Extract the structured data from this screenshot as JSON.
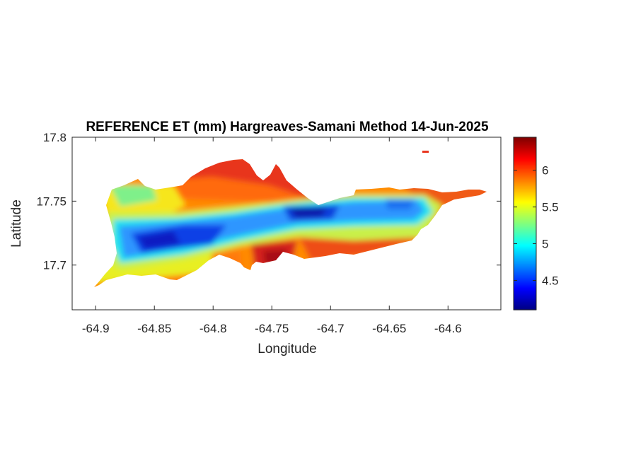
{
  "chart_data": {
    "type": "heatmap",
    "title": "REFERENCE ET (mm) Hargreaves-Samani Method  14-Jun-2025",
    "xlabel": "Longitude",
    "ylabel": "Latitude",
    "xlim": [
      -64.92,
      -64.555
    ],
    "ylim": [
      17.665,
      17.8
    ],
    "xticks": [
      -64.9,
      -64.85,
      -64.8,
      -64.75,
      -64.7,
      -64.65,
      -64.6
    ],
    "xtick_labels": [
      "-64.9",
      "-64.85",
      "-64.8",
      "-64.75",
      "-64.7",
      "-64.65",
      "-64.6"
    ],
    "yticks": [
      17.7,
      17.75,
      17.8
    ],
    "ytick_labels": [
      "17.7",
      "17.75",
      "17.8"
    ],
    "colormap": "jet",
    "clim": [
      4.1,
      6.45
    ],
    "colorbar_ticks": [
      4.5,
      5,
      5.5,
      6
    ],
    "colorbar_tick_labels": [
      "4.5",
      "5",
      "5.5",
      "6"
    ],
    "grid": false,
    "colorbar_placement": "right"
  }
}
